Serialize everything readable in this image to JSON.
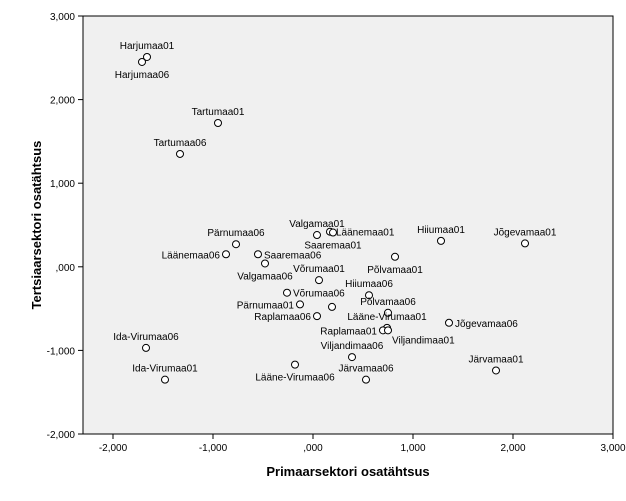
{
  "chart_data": {
    "type": "scatter",
    "xlabel": "Primaarsektori osatähtsus",
    "ylabel": "Tertsiaarsektori osatähtsus",
    "xlim": [
      -2.3,
      3.0
    ],
    "ylim": [
      -2.0,
      3.0
    ],
    "x_ticks": [
      -2.0,
      -1.0,
      0.0,
      1.0,
      2.0,
      3.0
    ],
    "x_tick_labels": [
      "-2,000",
      "-1,000",
      ",000",
      "1,000",
      "2,000",
      "3,000"
    ],
    "y_ticks": [
      -2.0,
      -1.0,
      0.0,
      1.0,
      2.0,
      3.0
    ],
    "y_tick_labels": [
      "-2,000",
      "-1,000",
      ",000",
      "1,000",
      "2,000",
      "3,000"
    ],
    "grid": false,
    "colors": {
      "plot_background": "#f0f0f0",
      "marker_stroke": "#000000",
      "marker_fill": "#ffffff"
    },
    "points": [
      {
        "label": "Harjumaa01",
        "x": -1.66,
        "y": 2.51,
        "label_pos": "above"
      },
      {
        "label": "Harjumaa06",
        "x": -1.71,
        "y": 2.45,
        "label_pos": "below"
      },
      {
        "label": "Tartumaa01",
        "x": -0.95,
        "y": 1.72,
        "label_pos": "above"
      },
      {
        "label": "Tartumaa06",
        "x": -1.33,
        "y": 1.35,
        "label_pos": "above"
      },
      {
        "label": "Valgamaa01",
        "x": 0.04,
        "y": 0.38,
        "label_pos": "above"
      },
      {
        "label": "Läänemaa01",
        "x": 0.17,
        "y": 0.42,
        "label_pos": "right"
      },
      {
        "label": "Pärnumaa06",
        "x": -0.77,
        "y": 0.27,
        "label_pos": "above"
      },
      {
        "label": "Saaremaa01",
        "x": 0.2,
        "y": 0.41,
        "label_pos": "below"
      },
      {
        "label": "Läänemaa06",
        "x": -0.87,
        "y": 0.15,
        "label_pos": "left"
      },
      {
        "label": "Saaremaa06",
        "x": -0.55,
        "y": 0.15,
        "label_pos": "right"
      },
      {
        "label": "Valgamaa06",
        "x": -0.48,
        "y": 0.04,
        "label_pos": "below"
      },
      {
        "label": "Hiiumaa01",
        "x": 1.28,
        "y": 0.31,
        "label_pos": "above"
      },
      {
        "label": "Jõgevamaa01",
        "x": 2.12,
        "y": 0.28,
        "label_pos": "above"
      },
      {
        "label": "Põlvamaa01",
        "x": 0.82,
        "y": 0.12,
        "label_pos": "below"
      },
      {
        "label": "Võrumaa01",
        "x": 0.06,
        "y": -0.16,
        "label_pos": "above"
      },
      {
        "label": "Hiiumaa06",
        "x": 0.56,
        "y": -0.34,
        "label_pos": "above"
      },
      {
        "label": "Võrumaa06",
        "x": -0.26,
        "y": -0.31,
        "label_pos": "right"
      },
      {
        "label": "Pärnumaa01",
        "x": -0.13,
        "y": -0.45,
        "label_pos": "left"
      },
      {
        "label": "Põlvamaa06",
        "x": 0.75,
        "y": -0.55,
        "label_pos": "above"
      },
      {
        "label": "Raplamaa06",
        "x": 0.04,
        "y": -0.59,
        "label_pos": "left"
      },
      {
        "label": "Läänemaa01",
        "x": 0.19,
        "y": -0.48,
        "label_pos": "hidden"
      },
      {
        "label": "Lääne-Virumaa01",
        "x": 0.74,
        "y": -0.73,
        "label_pos": "above"
      },
      {
        "label": "Jõgevamaa06",
        "x": 1.36,
        "y": -0.67,
        "label_pos": "right"
      },
      {
        "label": "Raplamaa01",
        "x": 0.7,
        "y": -0.76,
        "label_pos": "left"
      },
      {
        "label": "Viljandimaa01",
        "x": 0.75,
        "y": -0.76,
        "label_pos": "right_below"
      },
      {
        "label": "Ida-Virumaa06",
        "x": -1.67,
        "y": -0.97,
        "label_pos": "above"
      },
      {
        "label": "Viljandimaa06",
        "x": 0.39,
        "y": -1.08,
        "label_pos": "above"
      },
      {
        "label": "Ida-Virumaa01",
        "x": -1.48,
        "y": -1.35,
        "label_pos": "above"
      },
      {
        "label": "Lääne-Virumaa06",
        "x": -0.18,
        "y": -1.17,
        "label_pos": "below"
      },
      {
        "label": "Järvamaa06",
        "x": 0.53,
        "y": -1.35,
        "label_pos": "above"
      },
      {
        "label": "Järvamaa01",
        "x": 1.83,
        "y": -1.24,
        "label_pos": "above"
      }
    ]
  }
}
